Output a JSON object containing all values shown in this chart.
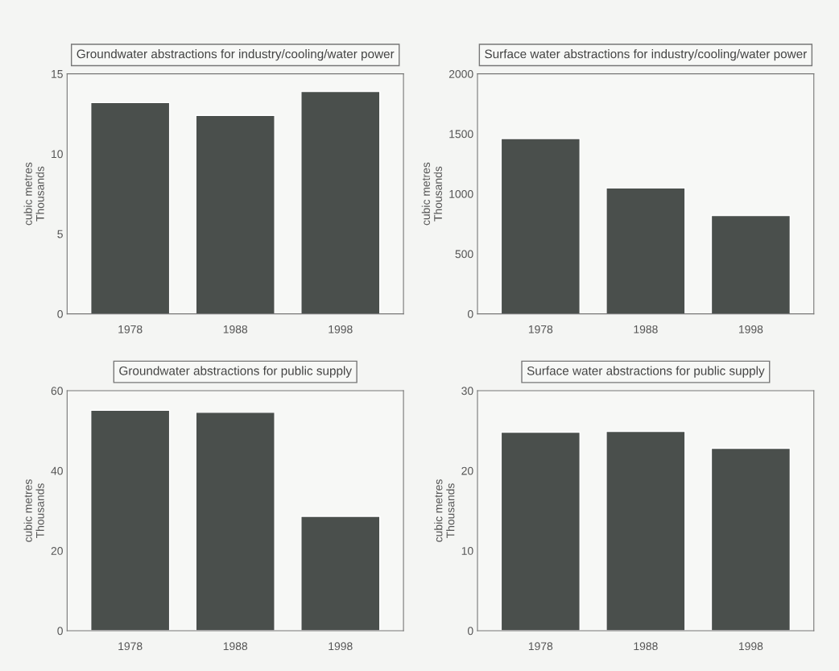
{
  "chart_data": [
    {
      "type": "bar",
      "title": "Groundwater abstractions for industry/cooling/water power",
      "ylabel": "cubic metres\nThousands",
      "categories": [
        "1978",
        "1988",
        "1998"
      ],
      "values": [
        13.2,
        12.4,
        13.9
      ],
      "color": "#4a4f4c",
      "ylim": [
        0,
        15
      ],
      "yticks": [
        0,
        5,
        10,
        15
      ],
      "grid": false
    },
    {
      "type": "bar",
      "title": "Surface water abstractions for industry/cooling/water power",
      "ylabel": "cubic metres\nThousands",
      "categories": [
        "1978",
        "1988",
        "1998"
      ],
      "values": [
        1460,
        1050,
        820
      ],
      "color": "#4a4f4c",
      "ylim": [
        0,
        2000
      ],
      "yticks": [
        0,
        500,
        1000,
        1500,
        2000
      ],
      "grid": false
    },
    {
      "type": "bar",
      "title": "Groundwater abstractions for public supply",
      "ylabel": "cubic metres\nThousands",
      "categories": [
        "1978",
        "1988",
        "1998"
      ],
      "values": [
        55.1,
        54.6,
        28.6
      ],
      "color": "#4a4f4c",
      "ylim": [
        0,
        60
      ],
      "yticks": [
        0,
        20,
        40,
        60
      ],
      "grid": false
    },
    {
      "type": "bar",
      "title": "Surface water abstractions for public supply",
      "ylabel": "cubic metres\nThousands",
      "categories": [
        "1978",
        "1988",
        "1998"
      ],
      "values": [
        24.8,
        24.9,
        22.8
      ],
      "color": "#4a4f4c",
      "ylim": [
        0,
        30
      ],
      "yticks": [
        0,
        10,
        20,
        30
      ],
      "grid": false
    }
  ]
}
